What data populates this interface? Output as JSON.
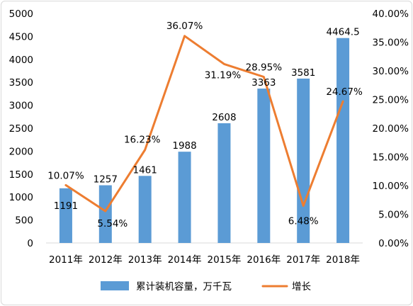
{
  "chart_data": {
    "type": "bar",
    "categories": [
      "2011年",
      "2012年",
      "2013年",
      "2014年",
      "2015年",
      "2016年",
      "2017年",
      "2018年"
    ],
    "series": [
      {
        "name": "累计装机容量，万千瓦",
        "type": "bar",
        "axis": "left",
        "color": "#5b9bd5",
        "values": [
          1191,
          1257,
          1461,
          1988,
          2608,
          3363,
          3581,
          4464.5
        ],
        "labels": [
          "1191",
          "1257",
          "1461",
          "1988",
          "2608",
          "3363",
          "3581",
          "4464.5"
        ]
      },
      {
        "name": "增长",
        "type": "line",
        "axis": "right",
        "color": "#ed7d31",
        "values": [
          10.07,
          5.54,
          16.23,
          36.07,
          31.19,
          28.95,
          6.48,
          24.67
        ],
        "labels": [
          "10.07%",
          "5.54%",
          "16.23%",
          "36.07%",
          "31.19%",
          "28.95%",
          "6.48%",
          "24.67%"
        ]
      }
    ],
    "y_left": {
      "range": [
        0,
        5000
      ],
      "ticks": [
        "0",
        "500",
        "1000",
        "1500",
        "2000",
        "2500",
        "3000",
        "3500",
        "4000",
        "4500",
        "5000"
      ]
    },
    "y_right": {
      "range": [
        0,
        40
      ],
      "ticks": [
        "0.00%",
        "5.00%",
        "10.00%",
        "15.00%",
        "20.00%",
        "25.00%",
        "30.00%",
        "35.00%",
        "40.00%"
      ]
    },
    "grid": false,
    "legend": "bottom"
  }
}
